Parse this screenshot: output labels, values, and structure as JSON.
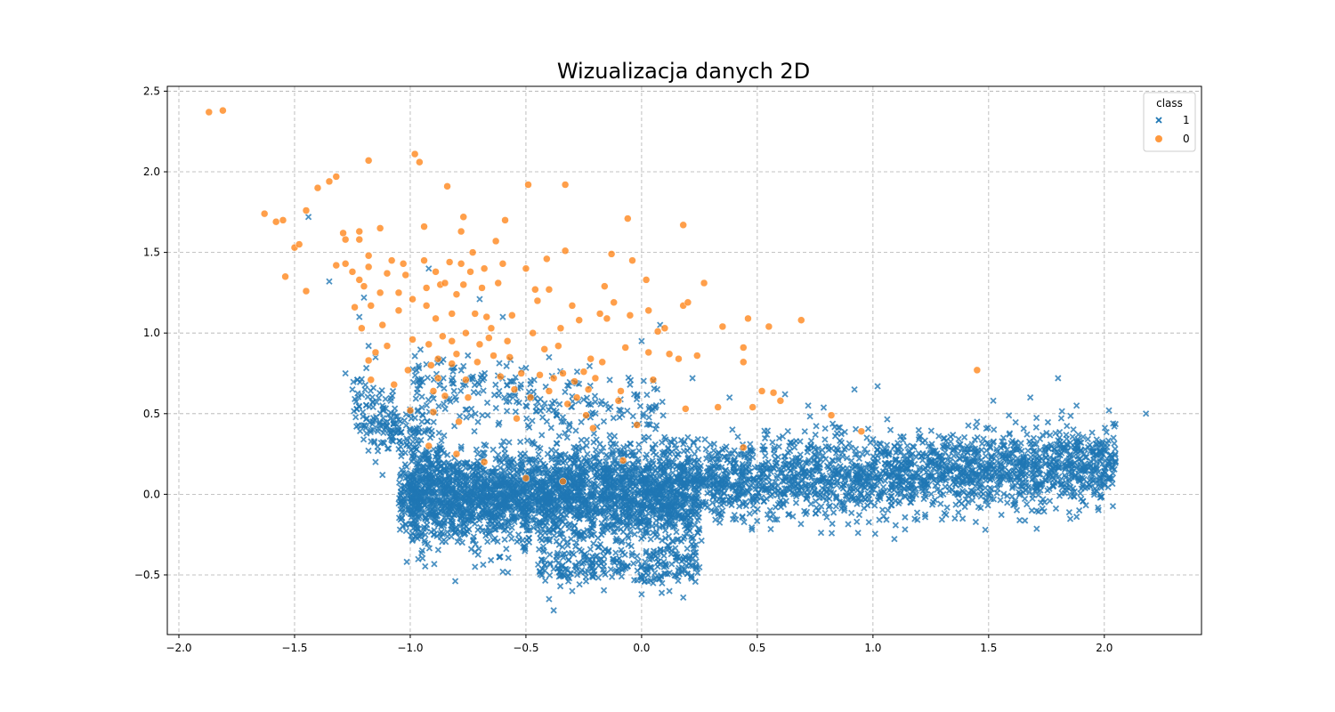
{
  "chart_data": {
    "type": "scatter",
    "title": "Wizualizacja danych 2D",
    "xlabel": "",
    "ylabel": "",
    "xlim": [
      -2.05,
      2.42
    ],
    "ylim": [
      -0.87,
      2.53
    ],
    "xticks": [
      -2.0,
      -1.5,
      -1.0,
      -0.5,
      0.0,
      0.5,
      1.0,
      1.5,
      2.0
    ],
    "xtick_labels": [
      "−2.0",
      "−1.5",
      "−1.0",
      "−0.5",
      "0.0",
      "0.5",
      "1.0",
      "1.5",
      "2.0"
    ],
    "yticks": [
      -0.5,
      0.0,
      0.5,
      1.0,
      1.5,
      2.0,
      2.5
    ],
    "ytick_labels": [
      "−0.5",
      "0.0",
      "0.5",
      "1.0",
      "1.5",
      "2.0",
      "2.5"
    ],
    "grid": true,
    "legend": {
      "title": "class",
      "placement": "top-right"
    },
    "series": [
      {
        "name": "1",
        "marker": "x",
        "color": "#1f77b4",
        "points": [
          [
            -1.44,
            1.72
          ],
          [
            -1.35,
            1.32
          ],
          [
            -1.28,
            0.75
          ],
          [
            -1.25,
            0.65
          ],
          [
            -1.22,
            1.1
          ],
          [
            -1.2,
            1.22
          ],
          [
            -1.18,
            0.92
          ],
          [
            -1.15,
            0.85
          ],
          [
            -1.12,
            0.55
          ],
          [
            -1.1,
            0.45
          ],
          [
            -1.08,
            0.35
          ],
          [
            -1.05,
            0.28
          ],
          [
            -1.15,
            0.2
          ],
          [
            -1.12,
            0.12
          ],
          [
            -1.02,
            0.1
          ],
          [
            -0.95,
            0.45
          ],
          [
            -0.92,
            1.4
          ],
          [
            -0.7,
            1.21
          ],
          [
            -0.6,
            1.1
          ],
          [
            -0.4,
            0.85
          ],
          [
            -0.05,
            0.68
          ],
          [
            0.0,
            0.95
          ],
          [
            0.08,
            1.05
          ],
          [
            0.22,
            0.72
          ],
          [
            0.38,
            0.6
          ],
          [
            0.62,
            0.62
          ],
          [
            0.72,
            0.55
          ],
          [
            0.92,
            0.65
          ],
          [
            1.02,
            0.67
          ],
          [
            1.45,
            0.45
          ],
          [
            1.52,
            0.58
          ],
          [
            1.68,
            0.6
          ],
          [
            1.8,
            0.72
          ],
          [
            1.88,
            0.55
          ],
          [
            2.02,
            0.52
          ],
          [
            2.18,
            0.5
          ],
          [
            1.9,
            0.32
          ],
          [
            1.75,
            0.38
          ],
          [
            1.6,
            0.25
          ],
          [
            1.55,
            0.1
          ],
          [
            1.4,
            0.22
          ],
          [
            -0.38,
            -0.72
          ],
          [
            -0.4,
            -0.65
          ],
          [
            -0.3,
            -0.6
          ],
          [
            0.0,
            -0.62
          ],
          [
            0.12,
            -0.6
          ],
          [
            0.18,
            -0.64
          ],
          [
            -0.6,
            -0.48
          ],
          [
            -0.72,
            -0.45
          ]
        ],
        "cluster_regions": [
          {
            "x": [
              -1.05,
              2.05
            ],
            "y_center": [
              0.0,
              0.18
            ],
            "y_spread": 0.22,
            "count": 3400
          },
          {
            "x": [
              -1.0,
              0.25
            ],
            "y_center": [
              -0.05,
              -0.1
            ],
            "y_spread": 0.28,
            "count": 1400
          },
          {
            "x": [
              -1.25,
              -0.85
            ],
            "y_center": [
              0.55,
              0.25
            ],
            "y_spread": 0.18,
            "count": 220
          },
          {
            "x": [
              -0.45,
              0.25
            ],
            "y_center": [
              -0.45,
              -0.45
            ],
            "y_spread": 0.1,
            "count": 220
          },
          {
            "x": [
              -1.0,
              0.1
            ],
            "y_center": [
              0.7,
              0.45
            ],
            "y_spread": 0.2,
            "count": 260
          }
        ]
      },
      {
        "name": "0",
        "marker": "o",
        "color": "#ff7f0e",
        "points": [
          [
            -1.87,
            2.37
          ],
          [
            -1.81,
            2.38
          ],
          [
            -1.63,
            1.74
          ],
          [
            -1.58,
            1.69
          ],
          [
            -1.55,
            1.7
          ],
          [
            -1.54,
            1.35
          ],
          [
            -1.5,
            1.53
          ],
          [
            -1.48,
            1.55
          ],
          [
            -1.45,
            1.76
          ],
          [
            -1.45,
            1.26
          ],
          [
            -1.4,
            1.9
          ],
          [
            -1.35,
            1.94
          ],
          [
            -1.32,
            1.97
          ],
          [
            -1.32,
            1.42
          ],
          [
            -1.29,
            1.62
          ],
          [
            -1.28,
            1.58
          ],
          [
            -1.28,
            1.43
          ],
          [
            -1.25,
            1.38
          ],
          [
            -1.24,
            1.16
          ],
          [
            -1.22,
            1.63
          ],
          [
            -1.22,
            1.58
          ],
          [
            -1.22,
            1.33
          ],
          [
            -1.21,
            1.03
          ],
          [
            -1.2,
            1.29
          ],
          [
            -1.18,
            2.07
          ],
          [
            -1.18,
            1.48
          ],
          [
            -1.18,
            1.41
          ],
          [
            -1.17,
            1.17
          ],
          [
            -1.18,
            0.83
          ],
          [
            -1.17,
            0.71
          ],
          [
            -1.15,
            0.88
          ],
          [
            -1.13,
            1.65
          ],
          [
            -1.13,
            1.25
          ],
          [
            -1.12,
            1.05
          ],
          [
            -1.1,
            1.37
          ],
          [
            -1.1,
            0.92
          ],
          [
            -1.08,
            1.45
          ],
          [
            -1.07,
            0.68
          ],
          [
            -1.05,
            1.14
          ],
          [
            -1.05,
            1.25
          ],
          [
            -1.03,
            1.43
          ],
          [
            -1.02,
            1.36
          ],
          [
            -1.01,
            0.77
          ],
          [
            -1.0,
            0.52
          ],
          [
            -0.99,
            1.21
          ],
          [
            -0.99,
            0.96
          ],
          [
            -0.98,
            2.11
          ],
          [
            -0.96,
            2.06
          ],
          [
            -0.94,
            1.66
          ],
          [
            -0.94,
            1.45
          ],
          [
            -0.93,
            1.28
          ],
          [
            -0.93,
            1.17
          ],
          [
            -0.92,
            0.93
          ],
          [
            -0.91,
            0.8
          ],
          [
            -0.9,
            0.64
          ],
          [
            -0.9,
            0.51
          ],
          [
            -0.89,
            1.38
          ],
          [
            -0.89,
            1.09
          ],
          [
            -0.88,
            0.84
          ],
          [
            -0.88,
            0.72
          ],
          [
            -0.87,
            1.3
          ],
          [
            -0.86,
            0.98
          ],
          [
            -0.85,
            1.31
          ],
          [
            -0.85,
            0.61
          ],
          [
            -0.84,
            1.91
          ],
          [
            -0.83,
            1.44
          ],
          [
            -0.82,
            1.12
          ],
          [
            -0.82,
            0.95
          ],
          [
            -0.82,
            0.81
          ],
          [
            -0.8,
            1.24
          ],
          [
            -0.8,
            0.87
          ],
          [
            -0.79,
            0.45
          ],
          [
            -0.78,
            1.63
          ],
          [
            -0.78,
            1.43
          ],
          [
            -0.77,
            1.72
          ],
          [
            -0.77,
            1.3
          ],
          [
            -0.76,
            1.0
          ],
          [
            -0.76,
            0.71
          ],
          [
            -0.75,
            0.6
          ],
          [
            -0.74,
            1.38
          ],
          [
            -0.73,
            1.5
          ],
          [
            -0.72,
            1.12
          ],
          [
            -0.71,
            0.82
          ],
          [
            -0.7,
            0.93
          ],
          [
            -0.69,
            1.28
          ],
          [
            -0.68,
            1.4
          ],
          [
            -0.67,
            1.1
          ],
          [
            -0.66,
            0.97
          ],
          [
            -0.65,
            1.03
          ],
          [
            -0.64,
            0.86
          ],
          [
            -0.63,
            1.57
          ],
          [
            -0.62,
            1.31
          ],
          [
            -0.61,
            0.73
          ],
          [
            -0.6,
            1.43
          ],
          [
            -0.59,
            1.7
          ],
          [
            -0.58,
            0.95
          ],
          [
            -0.57,
            0.85
          ],
          [
            -0.56,
            1.11
          ],
          [
            -0.55,
            0.65
          ],
          [
            -0.54,
            0.47
          ],
          [
            -0.52,
            0.75
          ],
          [
            -0.5,
            1.4
          ],
          [
            -0.49,
            1.92
          ],
          [
            -0.48,
            0.6
          ],
          [
            -0.47,
            1.0
          ],
          [
            -0.46,
            1.27
          ],
          [
            -0.45,
            1.2
          ],
          [
            -0.44,
            0.74
          ],
          [
            -0.42,
            0.9
          ],
          [
            -0.41,
            1.46
          ],
          [
            -0.4,
            1.27
          ],
          [
            -0.4,
            0.64
          ],
          [
            -0.38,
            0.72
          ],
          [
            -0.36,
            0.92
          ],
          [
            -0.35,
            1.03
          ],
          [
            -0.34,
            0.75
          ],
          [
            -0.33,
            1.92
          ],
          [
            -0.33,
            1.51
          ],
          [
            -0.32,
            0.56
          ],
          [
            -0.3,
            1.17
          ],
          [
            -0.29,
            0.7
          ],
          [
            -0.28,
            0.6
          ],
          [
            -0.27,
            1.08
          ],
          [
            -0.25,
            0.76
          ],
          [
            -0.24,
            0.49
          ],
          [
            -0.23,
            0.65
          ],
          [
            -0.22,
            0.84
          ],
          [
            -0.21,
            0.41
          ],
          [
            -0.2,
            0.72
          ],
          [
            -0.18,
            1.12
          ],
          [
            -0.17,
            0.82
          ],
          [
            -0.16,
            1.29
          ],
          [
            -0.15,
            1.09
          ],
          [
            -0.13,
            1.49
          ],
          [
            -0.12,
            1.19
          ],
          [
            -0.1,
            0.58
          ],
          [
            -0.09,
            0.64
          ],
          [
            -0.08,
            0.21
          ],
          [
            -0.07,
            0.91
          ],
          [
            -0.06,
            1.71
          ],
          [
            -0.05,
            1.11
          ],
          [
            -0.04,
            1.45
          ],
          [
            -0.02,
            0.43
          ],
          [
            0.02,
            1.33
          ],
          [
            0.03,
            0.88
          ],
          [
            0.03,
            1.14
          ],
          [
            0.05,
            0.71
          ],
          [
            0.07,
            1.01
          ],
          [
            0.1,
            1.03
          ],
          [
            0.12,
            0.87
          ],
          [
            0.16,
            0.84
          ],
          [
            0.18,
            1.17
          ],
          [
            0.18,
            1.67
          ],
          [
            0.19,
            0.53
          ],
          [
            0.2,
            1.19
          ],
          [
            0.24,
            0.86
          ],
          [
            0.27,
            1.31
          ],
          [
            0.33,
            0.54
          ],
          [
            0.35,
            1.04
          ],
          [
            0.44,
            0.91
          ],
          [
            0.44,
            0.82
          ],
          [
            0.44,
            0.29
          ],
          [
            0.46,
            1.09
          ],
          [
            0.48,
            0.54
          ],
          [
            0.52,
            0.64
          ],
          [
            0.55,
            1.04
          ],
          [
            0.57,
            0.63
          ],
          [
            0.6,
            0.58
          ],
          [
            0.69,
            1.08
          ],
          [
            0.82,
            0.49
          ],
          [
            0.95,
            0.39
          ],
          [
            1.45,
            0.77
          ],
          [
            -0.68,
            0.2
          ],
          [
            -0.8,
            0.25
          ],
          [
            -0.92,
            0.3
          ],
          [
            -0.5,
            0.1
          ],
          [
            -0.34,
            0.08
          ]
        ]
      }
    ]
  }
}
